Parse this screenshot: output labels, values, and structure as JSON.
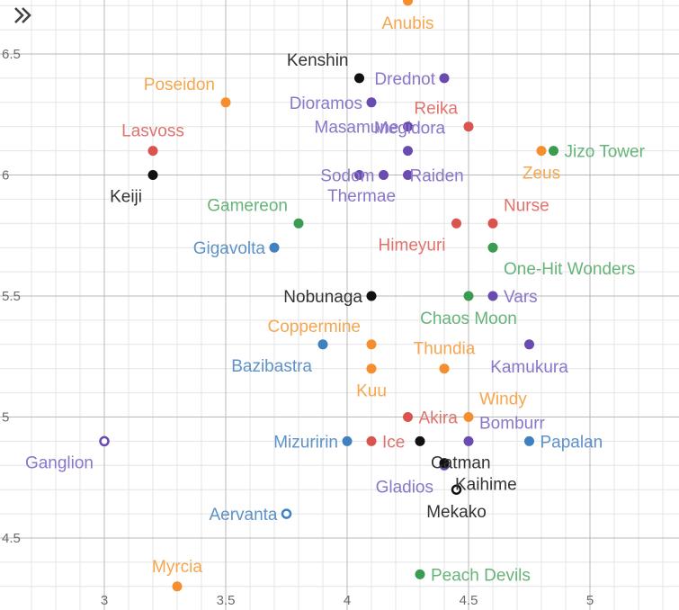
{
  "toolbar": {
    "collapse_icon": "double-chevron-right-icon"
  },
  "chart_data": {
    "type": "scatter",
    "title": "",
    "xlabel": "",
    "ylabel": "",
    "xlim": [
      2.65,
      5.38
    ],
    "ylim": [
      4.3,
      6.7
    ],
    "grid": true,
    "x_ticks": [
      {
        "v": 3,
        "t": "3"
      },
      {
        "v": 3.5,
        "t": "3.5"
      },
      {
        "v": 4,
        "t": "4"
      },
      {
        "v": 4.5,
        "t": "4.5"
      },
      {
        "v": 5,
        "t": "5"
      }
    ],
    "y_ticks": [
      {
        "v": 4.5,
        "t": "4.5"
      },
      {
        "v": 5,
        "t": "5"
      },
      {
        "v": 5.5,
        "t": "5.5"
      },
      {
        "v": 6,
        "t": "6"
      },
      {
        "v": 6.5,
        "t": "6.5"
      }
    ],
    "colors": {
      "black": "#111111",
      "orange": "#f78e2e",
      "purple": "#6a4bb0",
      "red": "#d9534f",
      "green": "#3b9b50",
      "blue": "#3f80bf"
    },
    "label_colors": {
      "black": "#333333",
      "orange": "#f6a64f",
      "purple": "#8a77c9",
      "red": "#e0736c",
      "green": "#67b47a",
      "blue": "#5f92c6"
    },
    "points": [
      {
        "name": "Anubis",
        "x": 4.25,
        "y": 6.72,
        "c": "orange",
        "pos": "below"
      },
      {
        "name": "Kenshin",
        "x": 4.05,
        "y": 6.4,
        "c": "black",
        "pos": "above-left"
      },
      {
        "name": "Drednot",
        "x": 4.4,
        "y": 6.4,
        "c": "purple",
        "pos": "left"
      },
      {
        "name": "Poseidon",
        "x": 3.5,
        "y": 6.3,
        "c": "orange",
        "pos": "above-left"
      },
      {
        "name": "Dioramos",
        "x": 4.1,
        "y": 6.3,
        "c": "purple",
        "pos": "left"
      },
      {
        "name": "Reika",
        "x": 4.5,
        "y": 6.2,
        "c": "red",
        "pos": "above-left"
      },
      {
        "name": "Masamune",
        "x": 4.25,
        "y": 6.2,
        "c": "purple",
        "pos": "left"
      },
      {
        "name": "Lasvoss",
        "x": 3.2,
        "y": 6.1,
        "c": "red",
        "pos": "above"
      },
      {
        "name": "Megidora",
        "x": 4.25,
        "y": 6.1,
        "c": "purple",
        "pos": "above-mid"
      },
      {
        "name": "Jizo Tower",
        "x": 4.85,
        "y": 6.1,
        "c": "green",
        "pos": "right"
      },
      {
        "name": "Zeus",
        "x": 4.8,
        "y": 6.1,
        "c": "orange",
        "pos": "below"
      },
      {
        "name": "Sodom",
        "x": 4.15,
        "y": 6.0,
        "c": "purple",
        "pos": "left"
      },
      {
        "name": "Raiden",
        "x": 4.25,
        "y": 6.0,
        "c": "purple",
        "pos": "right-near"
      },
      {
        "name": "Thermae",
        "x": 4.05,
        "y": 6.0,
        "c": "purple",
        "pos": "none"
      },
      {
        "name": "Keiji",
        "x": 3.2,
        "y": 6.0,
        "c": "black",
        "pos": "below-left"
      },
      {
        "name": "Gamereon",
        "x": 3.8,
        "y": 5.8,
        "c": "green",
        "pos": "above-left"
      },
      {
        "name": "Nurse",
        "x": 4.6,
        "y": 5.8,
        "c": "red",
        "pos": "above-right"
      },
      {
        "name": "Himeyuri",
        "x": 4.45,
        "y": 5.8,
        "c": "red",
        "pos": "below-left"
      },
      {
        "name": "Gigavolta",
        "x": 3.7,
        "y": 5.7,
        "c": "blue",
        "pos": "left"
      },
      {
        "name": "One-Hit Wonders",
        "x": 4.6,
        "y": 5.7,
        "c": "green",
        "pos": "below-right"
      },
      {
        "name": "Nobunaga",
        "x": 4.1,
        "y": 5.5,
        "c": "black",
        "pos": "left"
      },
      {
        "name": "Vars",
        "x": 4.6,
        "y": 5.5,
        "c": "purple",
        "pos": "right"
      },
      {
        "name": "Chaos Moon",
        "x": 4.5,
        "y": 5.5,
        "c": "green",
        "pos": "below"
      },
      {
        "name": "Coppermine",
        "x": 4.1,
        "y": 5.3,
        "c": "orange",
        "pos": "above-left"
      },
      {
        "name": "Thundia",
        "x": 4.4,
        "y": 5.2,
        "c": "orange",
        "pos": "above"
      },
      {
        "name": "Kamukura",
        "x": 4.75,
        "y": 5.3,
        "c": "purple",
        "pos": "below"
      },
      {
        "name": "Bazibastra",
        "x": 3.9,
        "y": 5.3,
        "c": "blue",
        "pos": "below-left"
      },
      {
        "name": "Kuu",
        "x": 4.1,
        "y": 5.2,
        "c": "orange",
        "pos": "below"
      },
      {
        "name": "Windy",
        "x": 4.5,
        "y": 5.0,
        "c": "orange",
        "pos": "above-right"
      },
      {
        "name": "Akira",
        "x": 4.25,
        "y": 5.0,
        "c": "red",
        "pos": "right"
      },
      {
        "name": "Bomburr",
        "x": 4.5,
        "y": 4.9,
        "c": "purple",
        "pos": "above-right"
      },
      {
        "name": "Ganglion",
        "x": 3.0,
        "y": 4.9,
        "c": "purple",
        "pos": "below-left",
        "hollow": true
      },
      {
        "name": "Mizuririn",
        "x": 4.0,
        "y": 4.9,
        "c": "blue",
        "pos": "left"
      },
      {
        "name": "Ice",
        "x": 4.1,
        "y": 4.9,
        "c": "red",
        "pos": "right"
      },
      {
        "name": "Catman",
        "x": 4.3,
        "y": 4.9,
        "c": "black",
        "pos": "below-right"
      },
      {
        "name": "Papalan",
        "x": 4.75,
        "y": 4.9,
        "c": "blue",
        "pos": "right"
      },
      {
        "name": "Gladios",
        "x": 4.4,
        "y": 4.8,
        "c": "purple",
        "pos": "below-left"
      },
      {
        "name": "Kaihime",
        "x": 4.4,
        "y": 4.81,
        "c": "black",
        "pos": "below-right"
      },
      {
        "name": "Mekako",
        "x": 4.45,
        "y": 4.7,
        "c": "black",
        "pos": "below",
        "hollow": true
      },
      {
        "name": "Aervanta",
        "x": 3.75,
        "y": 4.6,
        "c": "blue",
        "pos": "left",
        "hollow": true
      },
      {
        "name": "Peach Devils",
        "x": 4.3,
        "y": 4.35,
        "c": "green",
        "pos": "right"
      },
      {
        "name": "Myrcia",
        "x": 3.3,
        "y": 4.3,
        "c": "orange",
        "pos": "above"
      }
    ]
  }
}
